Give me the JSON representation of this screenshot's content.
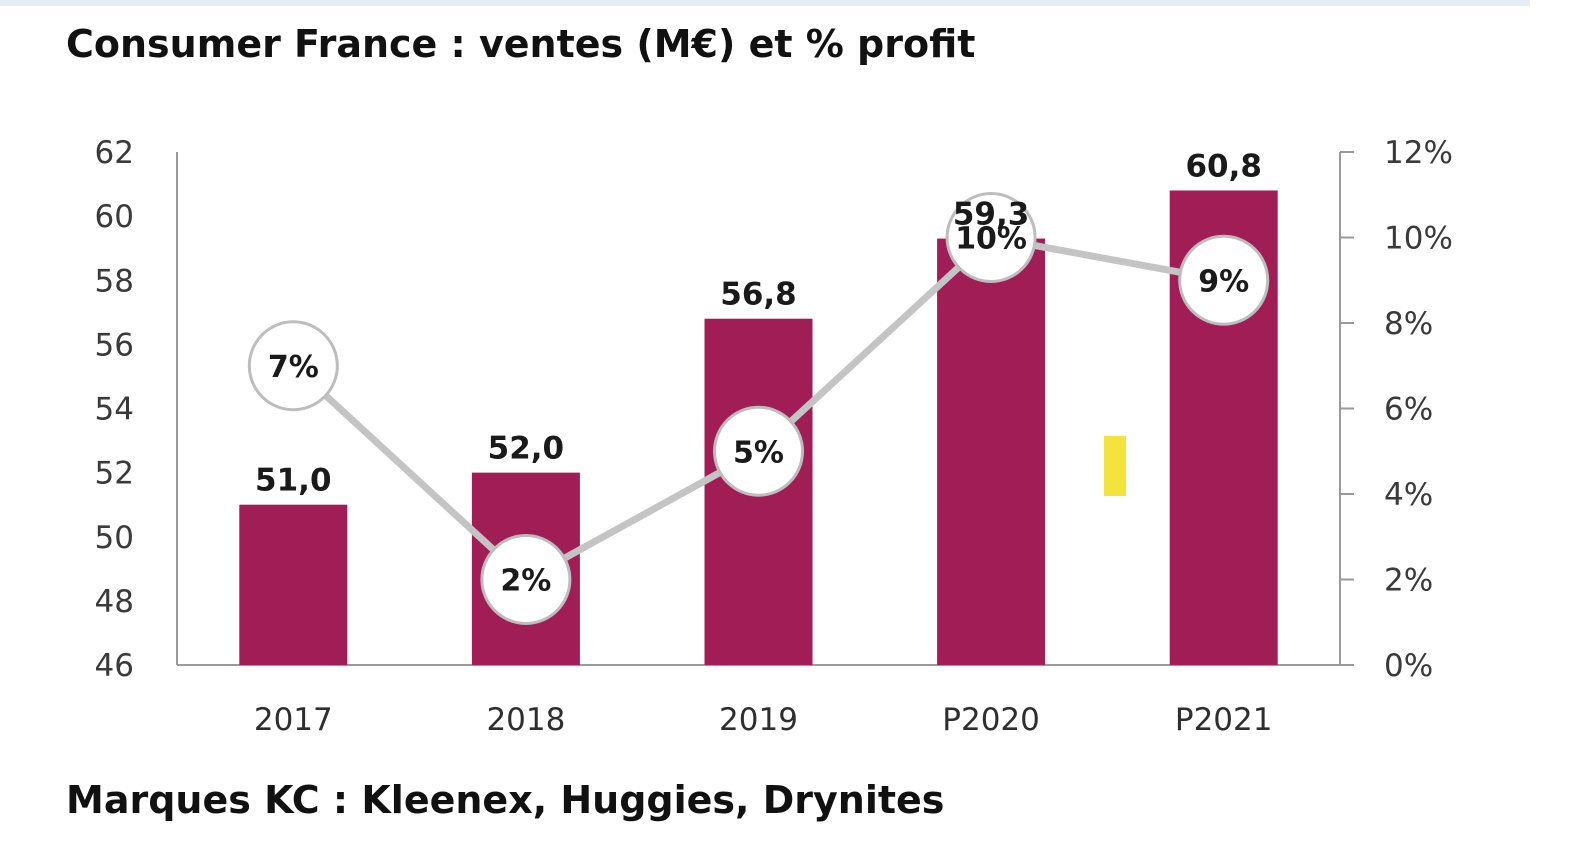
{
  "title": "Consumer France : ventes (M€) et % profit",
  "footnote": "Marques KC : Kleenex, Huggies, Drynites",
  "colors": {
    "bar": "#a01d55",
    "line": "#c4c4c4",
    "marker_fill": "#ffffff",
    "marker_stroke": "#bdbdbd",
    "axis": "#9a9a9a",
    "highlight": "#f3e33c"
  },
  "chart_data": {
    "type": "bar",
    "categories": [
      "2017",
      "2018",
      "2019",
      "P2020",
      "P2021"
    ],
    "series": [
      {
        "type": "bar",
        "axis": "left",
        "values": [
          51.0,
          52.0,
          56.8,
          59.3,
          60.8
        ],
        "labels": [
          "51,0",
          "52,0",
          "56,8",
          "59,3",
          "60,8"
        ]
      },
      {
        "type": "line",
        "axis": "right",
        "values": [
          7,
          2,
          5,
          10,
          9
        ],
        "labels": [
          "7%",
          "2%",
          "5%",
          "10%",
          "9%"
        ]
      }
    ],
    "y_left": {
      "min": 46,
      "max": 62,
      "ticks": [
        "46",
        "48",
        "50",
        "52",
        "54",
        "56",
        "58",
        "60",
        "62"
      ]
    },
    "y_right": {
      "min": 0,
      "max": 12,
      "ticks": [
        "0%",
        "2%",
        "4%",
        "6%",
        "8%",
        "10%",
        "12%"
      ]
    },
    "grid": false,
    "legend": "none"
  }
}
